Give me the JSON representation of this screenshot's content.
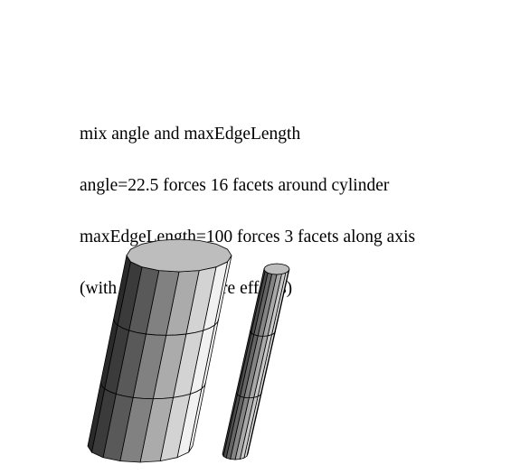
{
  "caption": {
    "lines": [
      "mix angle and maxEdgeLength",
      "angle=22.5 forces 16 facets around cylinder",
      "maxEdgeLength=100 forces 3 facets along axis",
      "(with very non-square effects)"
    ]
  },
  "objects": [
    {
      "name": "large-cylinder",
      "facets_around": 16,
      "facets_along": 3
    },
    {
      "name": "thin-cylinder",
      "facets_around": 16,
      "facets_along": 3
    }
  ],
  "colors": {
    "background": "#ffffff",
    "line": "#000000"
  }
}
